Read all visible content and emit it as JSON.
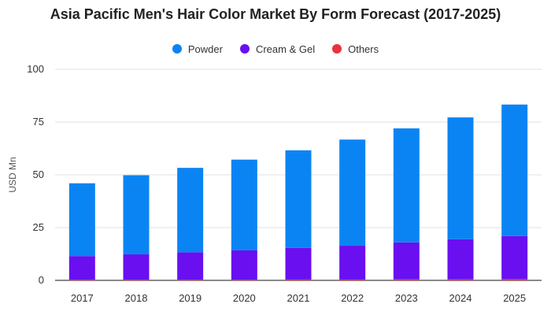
{
  "chart_data": {
    "type": "bar",
    "stacked": true,
    "title": "Asia Pacific Men's Hair Color Market By Form Forecast (2017-2025)",
    "ylabel": "USD Mn",
    "xlabel": "",
    "categories": [
      "2017",
      "2018",
      "2019",
      "2020",
      "2021",
      "2022",
      "2023",
      "2024",
      "2025"
    ],
    "ylim": [
      0,
      100
    ],
    "yticks": [
      0,
      25,
      50,
      75,
      100
    ],
    "grid": true,
    "legend_position": "top-center",
    "series": [
      {
        "name": "Others",
        "color": "#e8333c",
        "values": [
          0.3,
          0.3,
          0.3,
          0.3,
          0.4,
          0.4,
          0.5,
          0.5,
          0.6
        ]
      },
      {
        "name": "Cream & Gel",
        "color": "#6a0ff0",
        "values": [
          11.2,
          12.0,
          13.0,
          13.9,
          15.0,
          16.0,
          17.5,
          19.0,
          20.4
        ]
      },
      {
        "name": "Powder",
        "color": "#0b84f3",
        "values": [
          34.5,
          37.5,
          40.0,
          43.0,
          46.2,
          50.3,
          54.0,
          57.7,
          62.3
        ]
      }
    ],
    "legend_order": [
      "Powder",
      "Cream & Gel",
      "Others"
    ]
  }
}
